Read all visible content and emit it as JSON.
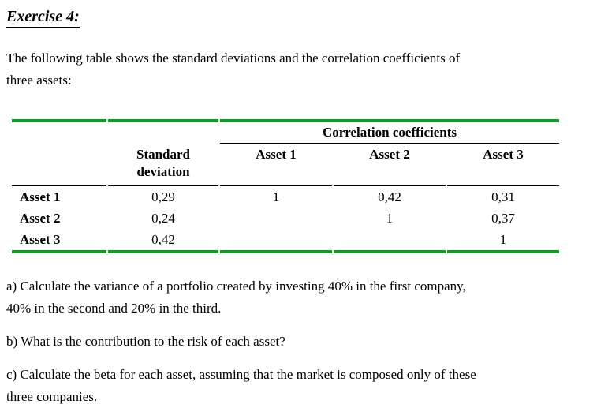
{
  "title": "Exercise 4:",
  "intro": {
    "lines": [
      "The following table shows the standard deviations and the correlation coefficients of",
      "three assets:"
    ]
  },
  "table": {
    "corr_header": "Correlation coefficients",
    "std_header": "Standard deviation",
    "asset_headers": [
      "Asset 1",
      "Asset 2",
      "Asset 3"
    ],
    "rows": [
      {
        "label": "Asset 1",
        "std": "0,29",
        "a1": "1",
        "a2": "0,42",
        "a3": "0,31"
      },
      {
        "label": "Asset 2",
        "std": "0,24",
        "a1": "",
        "a2": "1",
        "a3": "0,37"
      },
      {
        "label": "Asset 3",
        "std": "0,42",
        "a1": "",
        "a2": "",
        "a3": "1"
      }
    ]
  },
  "questions": {
    "a": {
      "lines": [
        "a) Calculate the variance of a portfolio created by investing 40% in the first company,",
        "40% in the second and 20% in the third."
      ]
    },
    "b": {
      "lines": [
        "b) What is the contribution to the risk of each asset?"
      ]
    },
    "c": {
      "lines": [
        "c) Calculate the beta for each asset, assuming that the market is composed only of these",
        "three companies."
      ]
    }
  },
  "colors": {
    "table_rule_green": "#109b23",
    "table_rule_black": "#000000",
    "text": "#000000",
    "background": "#ffffff"
  }
}
